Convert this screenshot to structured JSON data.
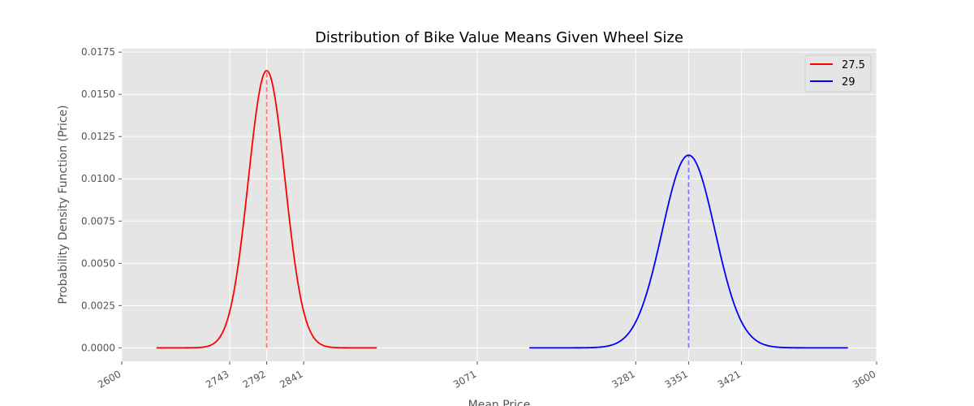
{
  "chart_data": {
    "type": "line",
    "title": "Distribution of Bike Value Means Given Wheel Size",
    "xlabel": "Mean Price",
    "ylabel": "Probability Density Function (Price)",
    "xlim": [
      2600,
      3600
    ],
    "ylim": [
      -0.0008,
      0.0177
    ],
    "x_ticks": [
      2600,
      2743,
      2792,
      2841,
      3071,
      3281,
      3351,
      3421,
      3600
    ],
    "y_ticks": [
      0.0,
      0.0025,
      0.005,
      0.0075,
      0.01,
      0.0125,
      0.015,
      0.0175
    ],
    "y_tick_labels": [
      "0.0000",
      "0.0025",
      "0.0050",
      "0.0075",
      "0.0100",
      "0.0125",
      "0.0150",
      "0.0175"
    ],
    "grid": true,
    "legend_position": "top-right",
    "series": [
      {
        "name": "27.5",
        "color": "#ff0000",
        "mean": 2792,
        "sd": 24.3,
        "x_range": [
          2646,
          2938
        ],
        "peak": 0.0164,
        "mean_line": "dashed"
      },
      {
        "name": "29",
        "color": "#0000ff",
        "mean": 3351,
        "sd": 35,
        "x_range": [
          3140,
          3562
        ],
        "peak": 0.0114,
        "mean_line": "dashed"
      }
    ]
  }
}
